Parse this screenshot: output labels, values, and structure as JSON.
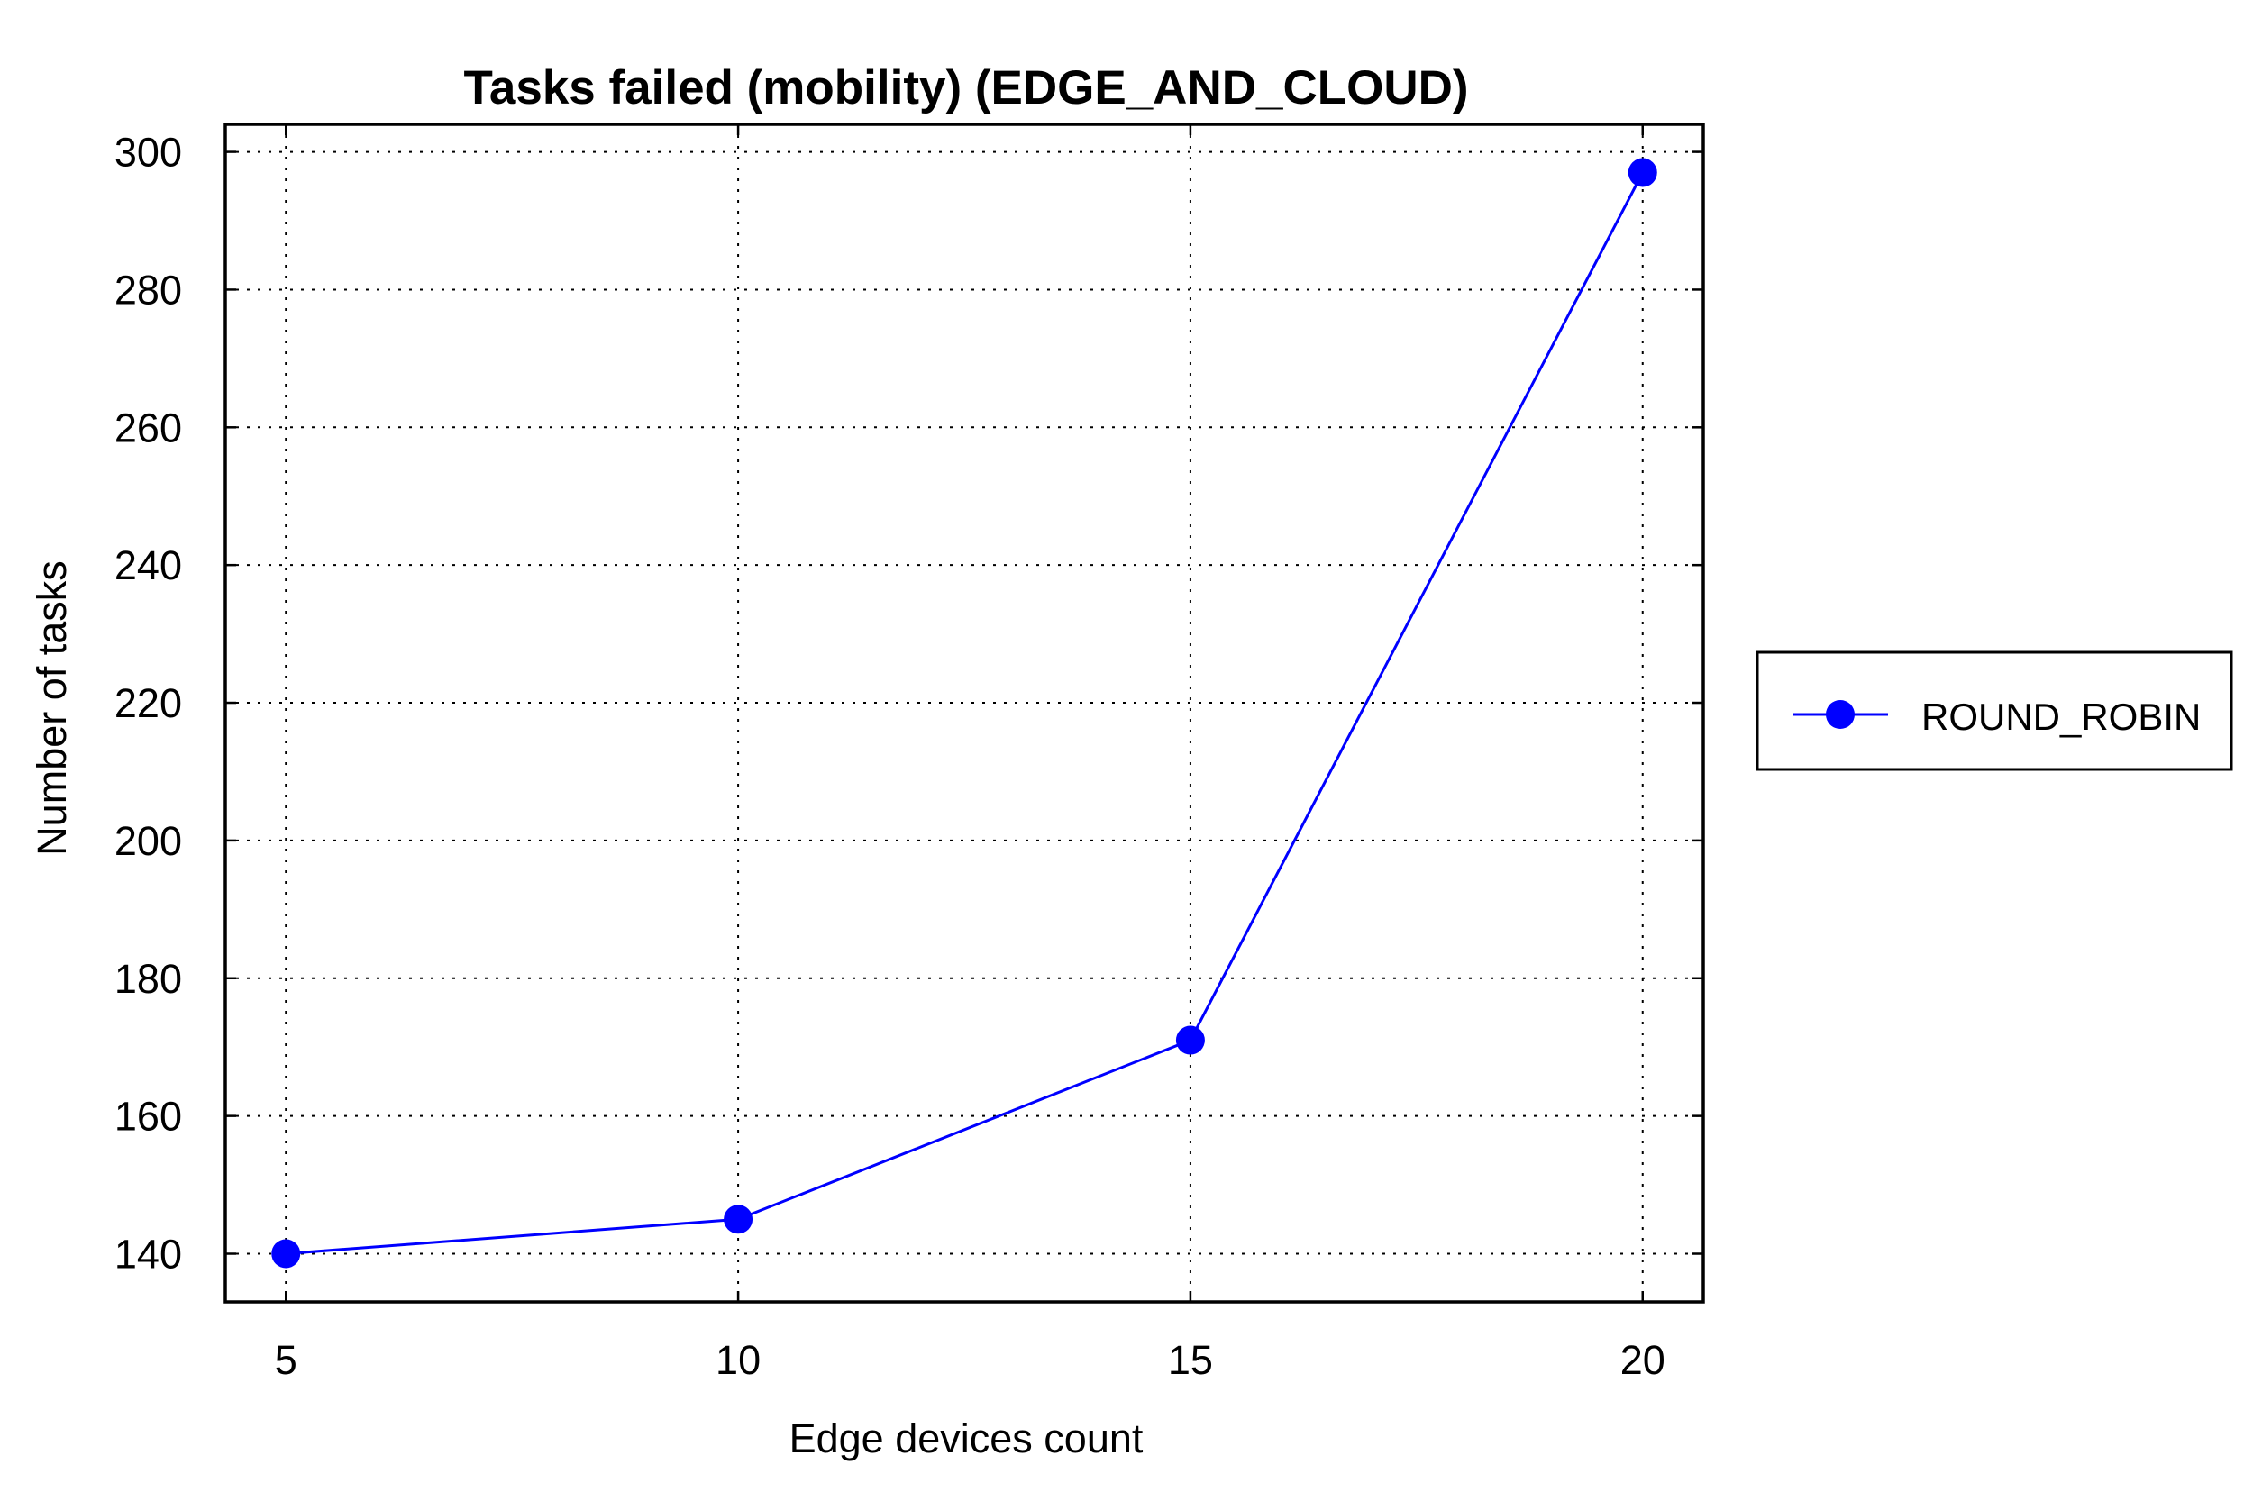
{
  "chart_data": {
    "type": "line",
    "title": "Tasks failed (mobility) (EDGE_AND_CLOUD)",
    "xlabel": "Edge devices count",
    "ylabel": "Number of tasks",
    "x": [
      5,
      10,
      15,
      20
    ],
    "xticks": [
      "5",
      "10",
      "15",
      "20"
    ],
    "yticks": [
      "140",
      "160",
      "180",
      "200",
      "220",
      "240",
      "260",
      "280",
      "300"
    ],
    "xlim": [
      4.33,
      20.67
    ],
    "ylim": [
      133,
      304
    ],
    "grid": true,
    "legend_position": "outside-right",
    "series": [
      {
        "name": "ROUND_ROBIN",
        "values": [
          140,
          145,
          171,
          297
        ],
        "color": "#0000ff",
        "marker": "circle"
      }
    ]
  }
}
